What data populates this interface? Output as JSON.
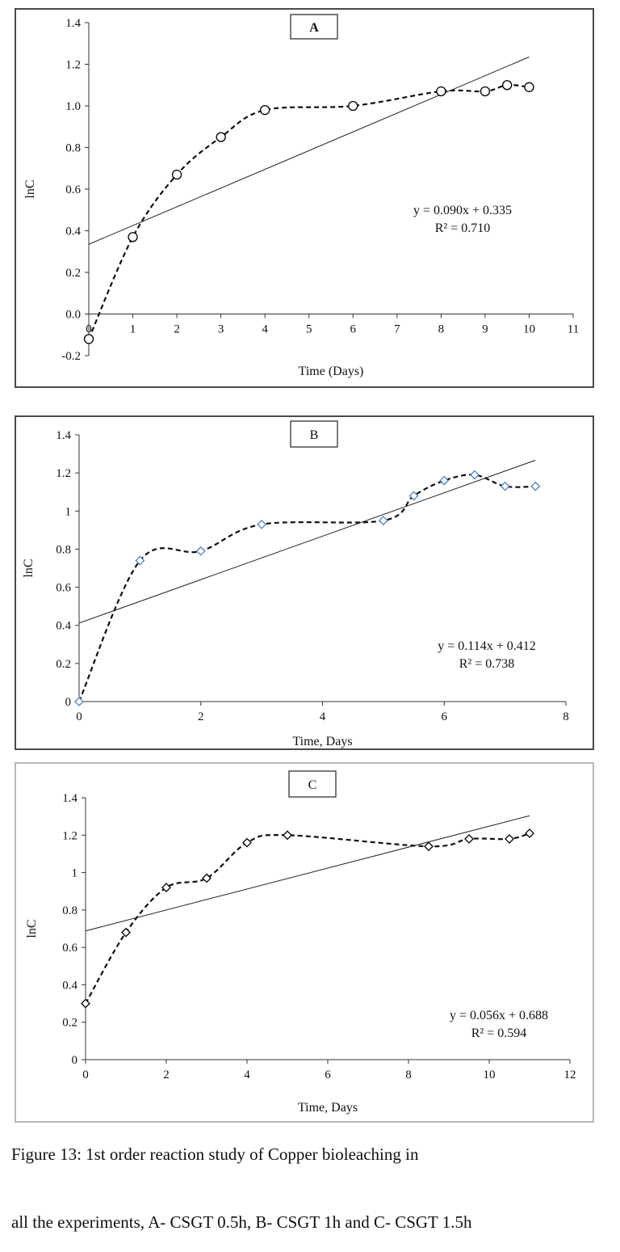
{
  "chart_data": [
    {
      "type": "line",
      "panel_label": "A",
      "xlabel": "Time (Days)",
      "ylabel": "lnC",
      "xlim": [
        0,
        11
      ],
      "ylim": [
        -0.2,
        1.4
      ],
      "xticks": [
        0,
        1,
        2,
        3,
        4,
        5,
        6,
        7,
        8,
        9,
        10,
        11
      ],
      "yticks": [
        -0.2,
        0.0,
        0.2,
        0.4,
        0.6,
        0.8,
        1.0,
        1.2,
        1.4
      ],
      "ytick_decimals": 1,
      "marker": "circle",
      "marker_color": "#000000",
      "x": [
        0,
        1,
        2,
        3,
        4,
        6,
        8,
        9,
        9.5,
        10
      ],
      "y": [
        -0.12,
        0.37,
        0.67,
        0.85,
        0.98,
        1.0,
        1.07,
        1.07,
        1.1,
        1.09
      ],
      "trendline": {
        "slope": 0.09,
        "intercept": 0.335,
        "x_range": [
          0,
          10
        ]
      },
      "equation": "y = 0.090x + 0.335",
      "r2": "R² = 0.710"
    },
    {
      "type": "line",
      "panel_label": "B",
      "xlabel": "Time, Days",
      "ylabel": "lnC",
      "xlim": [
        0,
        8
      ],
      "ylim": [
        0,
        1.4
      ],
      "xticks": [
        0,
        2,
        4,
        6,
        8
      ],
      "yticks": [
        0,
        0.2,
        0.4,
        0.6,
        0.8,
        1,
        1.2,
        1.4
      ],
      "ytick_decimals": null,
      "marker": "diamond",
      "marker_color": "#4f81bd",
      "x": [
        0,
        1,
        2,
        3,
        5,
        5.5,
        6,
        6.5,
        7,
        7.5
      ],
      "y": [
        0,
        0.74,
        0.79,
        0.93,
        0.95,
        1.08,
        1.16,
        1.19,
        1.13,
        1.13
      ],
      "trendline": {
        "slope": 0.114,
        "intercept": 0.412,
        "x_range": [
          0,
          7.5
        ]
      },
      "equation": "y = 0.114x + 0.412",
      "r2": "R² = 0.738"
    },
    {
      "type": "line",
      "panel_label": "C",
      "xlabel": "Time, Days",
      "ylabel": "lnC",
      "xlim": [
        0,
        12
      ],
      "ylim": [
        0,
        1.4
      ],
      "xticks": [
        0,
        2,
        4,
        6,
        8,
        10,
        12
      ],
      "yticks": [
        0,
        0.2,
        0.4,
        0.6,
        0.8,
        1,
        1.2,
        1.4
      ],
      "ytick_decimals": null,
      "marker": "diamond",
      "marker_color": "#000000",
      "x": [
        0,
        1,
        2,
        3,
        4,
        5,
        8.5,
        9.5,
        10.5,
        11
      ],
      "y": [
        0.3,
        0.68,
        0.92,
        0.97,
        1.16,
        1.2,
        1.14,
        1.18,
        1.18,
        1.21
      ],
      "trendline": {
        "slope": 0.056,
        "intercept": 0.688,
        "x_range": [
          0,
          11
        ]
      },
      "equation": "y = 0.056x + 0.688",
      "r2": "R² = 0.594"
    }
  ],
  "caption": {
    "line1": "Figure 13: 1st order reaction study of Copper bioleaching in",
    "line2": "all the experiments, A- CSGT 0.5h, B- CSGT 1h and C- CSGT 1.5h"
  }
}
